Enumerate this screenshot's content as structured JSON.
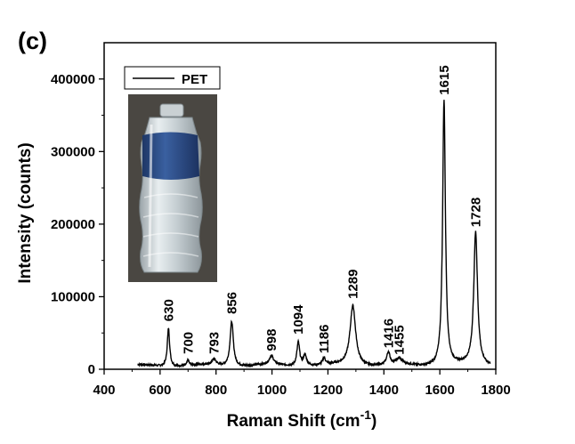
{
  "panel_label": "(c)",
  "chart_data": {
    "type": "line",
    "title": "",
    "xlabel": "Raman Shift (cm",
    "xlabel_superscript": "-1",
    "xlabel_suffix": ")",
    "ylabel": "Intensity (counts)",
    "xlim": [
      400,
      1800
    ],
    "ylim": [
      0,
      450000
    ],
    "xticks": [
      400,
      600,
      800,
      1000,
      1200,
      1400,
      1600,
      1800
    ],
    "xtick_labels": [
      "400",
      "600",
      "800",
      "1000",
      "1200",
      "1400",
      "1600",
      "1800"
    ],
    "yticks": [
      0,
      100000,
      200000,
      300000,
      400000
    ],
    "ytick_labels": [
      "0",
      "100000",
      "200000",
      "300000",
      "400000"
    ],
    "grid": false,
    "legend": {
      "position": "top-left",
      "entries": [
        "PET"
      ]
    },
    "series": [
      {
        "name": "PET",
        "color": "#000000",
        "x_range": [
          520,
          1780
        ],
        "baseline": 5000,
        "peaks": [
          {
            "x": 630,
            "y": 58000,
            "width": 5
          },
          {
            "x": 700,
            "y": 13000,
            "width": 4
          },
          {
            "x": 793,
            "y": 13000,
            "width": 8
          },
          {
            "x": 856,
            "y": 67000,
            "width": 7
          },
          {
            "x": 998,
            "y": 17000,
            "width": 9
          },
          {
            "x": 1094,
            "y": 38000,
            "width": 6
          },
          {
            "x": 1118,
            "y": 20000,
            "width": 7
          },
          {
            "x": 1186,
            "y": 14000,
            "width": 6
          },
          {
            "x": 1289,
            "y": 88000,
            "width": 12
          },
          {
            "x": 1416,
            "y": 22000,
            "width": 7
          },
          {
            "x": 1455,
            "y": 13000,
            "width": 12
          },
          {
            "x": 1615,
            "y": 370000,
            "width": 6
          },
          {
            "x": 1728,
            "y": 188000,
            "width": 8
          }
        ]
      }
    ],
    "peak_labels": [
      {
        "x": 630,
        "text": "630",
        "y_top": 66000
      },
      {
        "x": 700,
        "text": "700",
        "y_top": 21000
      },
      {
        "x": 793,
        "text": "793",
        "y_top": 21000
      },
      {
        "x": 856,
        "text": "856",
        "y_top": 76000
      },
      {
        "x": 998,
        "text": "998",
        "y_top": 25000
      },
      {
        "x": 1094,
        "text": "1094",
        "y_top": 48000
      },
      {
        "x": 1186,
        "text": "1186",
        "y_top": 22000
      },
      {
        "x": 1289,
        "text": "1289",
        "y_top": 97000
      },
      {
        "x": 1416,
        "text": "1416",
        "y_top": 29000
      },
      {
        "x": 1455,
        "text": "1455",
        "y_top": 20000
      },
      {
        "x": 1615,
        "text": "1615",
        "y_top": 378000
      },
      {
        "x": 1728,
        "text": "1728",
        "y_top": 196000
      }
    ]
  },
  "inset_photo": {
    "subject": "water-bottle-icon",
    "label_color": "#2e4f8a",
    "background_color": "#4a4742"
  }
}
